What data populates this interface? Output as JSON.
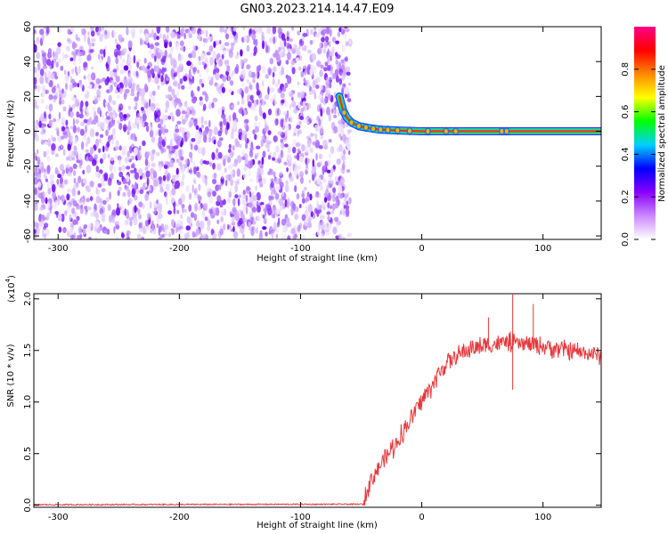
{
  "title": "GN03.2023.214.14.47.E09",
  "chart_data": [
    {
      "type": "heatmap",
      "name": "spectrogram",
      "xlabel": "Height of straight line (km)",
      "ylabel": "Frequency (Hz)",
      "xlim": [
        -320,
        148
      ],
      "ylim": [
        -62,
        60
      ],
      "xticks": [
        -300,
        -200,
        -100,
        0,
        100
      ],
      "yticks": [
        -60,
        -40,
        -20,
        0,
        20,
        40,
        60
      ],
      "noise_region_x": [
        -320,
        -62
      ],
      "signal_track": [
        {
          "x": -68,
          "f": 20
        },
        {
          "x": -65,
          "f": 12
        },
        {
          "x": -62,
          "f": 8
        },
        {
          "x": -58,
          "f": 5
        },
        {
          "x": -52,
          "f": 3
        },
        {
          "x": -45,
          "f": 2
        },
        {
          "x": -35,
          "f": 1
        },
        {
          "x": -20,
          "f": 0.5
        },
        {
          "x": 0,
          "f": 0
        },
        {
          "x": 148,
          "f": 0
        }
      ],
      "colorbar": {
        "label": "Normalized spectral amplitude",
        "ticks": [
          "0.0",
          "0.2",
          "0.4",
          "0.6",
          "0.8"
        ],
        "range": [
          0,
          1
        ],
        "colors": [
          "#ffffff",
          "#cc88ff",
          "#8800ff",
          "#0000ff",
          "#00d0ff",
          "#00ff00",
          "#ffff00",
          "#ff8800",
          "#ff0000",
          "#ff0088"
        ]
      }
    },
    {
      "type": "line",
      "name": "snr",
      "xlabel": "Height of straight line (km)",
      "ylabel": "SNR (10 * v/v)",
      "yunit": "(x10",
      "yunit_exp": "4",
      "yunit_close": ")",
      "xlim": [
        -320,
        148
      ],
      "ylim": [
        -0.02,
        2.05
      ],
      "xticks": [
        -300,
        -200,
        -100,
        0,
        100
      ],
      "yticks": [
        "0.0",
        "0.5",
        "1.0",
        "1.5",
        "2.0"
      ],
      "ytick_values": [
        0,
        0.5,
        1.0,
        1.5,
        2.0
      ],
      "color": "#e8373a",
      "key_points": [
        {
          "x": -320,
          "y": 0.005
        },
        {
          "x": -48,
          "y": 0.01
        },
        {
          "x": -45,
          "y": 0.18
        },
        {
          "x": -35,
          "y": 0.38
        },
        {
          "x": -20,
          "y": 0.62
        },
        {
          "x": -5,
          "y": 0.92
        },
        {
          "x": 5,
          "y": 1.1
        },
        {
          "x": 20,
          "y": 1.38
        },
        {
          "x": 40,
          "y": 1.52
        },
        {
          "x": 70,
          "y": 1.58
        },
        {
          "x": 100,
          "y": 1.54
        },
        {
          "x": 148,
          "y": 1.45
        }
      ],
      "spikes": [
        {
          "x": 75,
          "y": 2.05
        },
        {
          "x": 92,
          "y": 1.95
        },
        {
          "x": 75,
          "y": 1.12
        },
        {
          "x": 55,
          "y": 1.82
        }
      ]
    }
  ]
}
